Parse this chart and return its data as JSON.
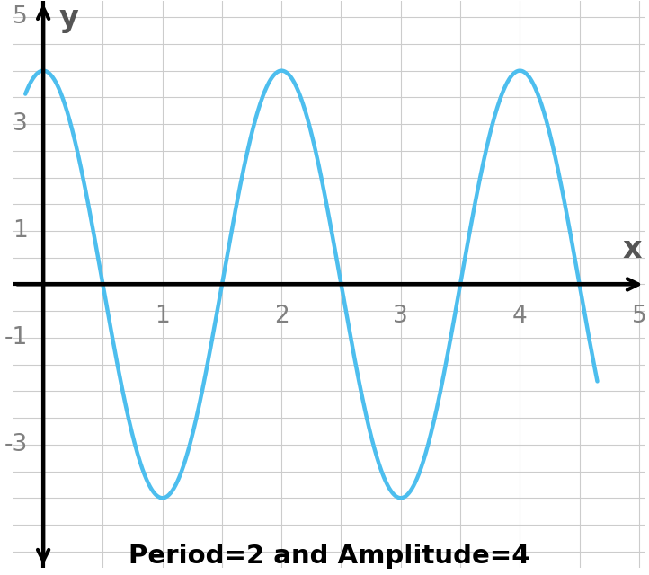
{
  "amplitude": 4,
  "period": 2,
  "phase": 1.5707963267948966,
  "x_start": -0.15,
  "x_end": 4.65,
  "xlim": [
    -0.25,
    5.05
  ],
  "ylim": [
    -5.3,
    5.3
  ],
  "x_ticks": [
    1,
    2,
    3,
    4,
    5
  ],
  "y_ticks": [
    -3,
    -1,
    1,
    3,
    5
  ],
  "line_color": "#4DBEEE",
  "line_width": 3.2,
  "title": "Period=2 and Amplitude=4",
  "title_fontsize": 21,
  "title_fontweight": "bold",
  "axis_label_fontsize": 24,
  "tick_fontsize": 19,
  "grid_color": "#cccccc",
  "background_color": "#ffffff",
  "label_color": "#808080"
}
